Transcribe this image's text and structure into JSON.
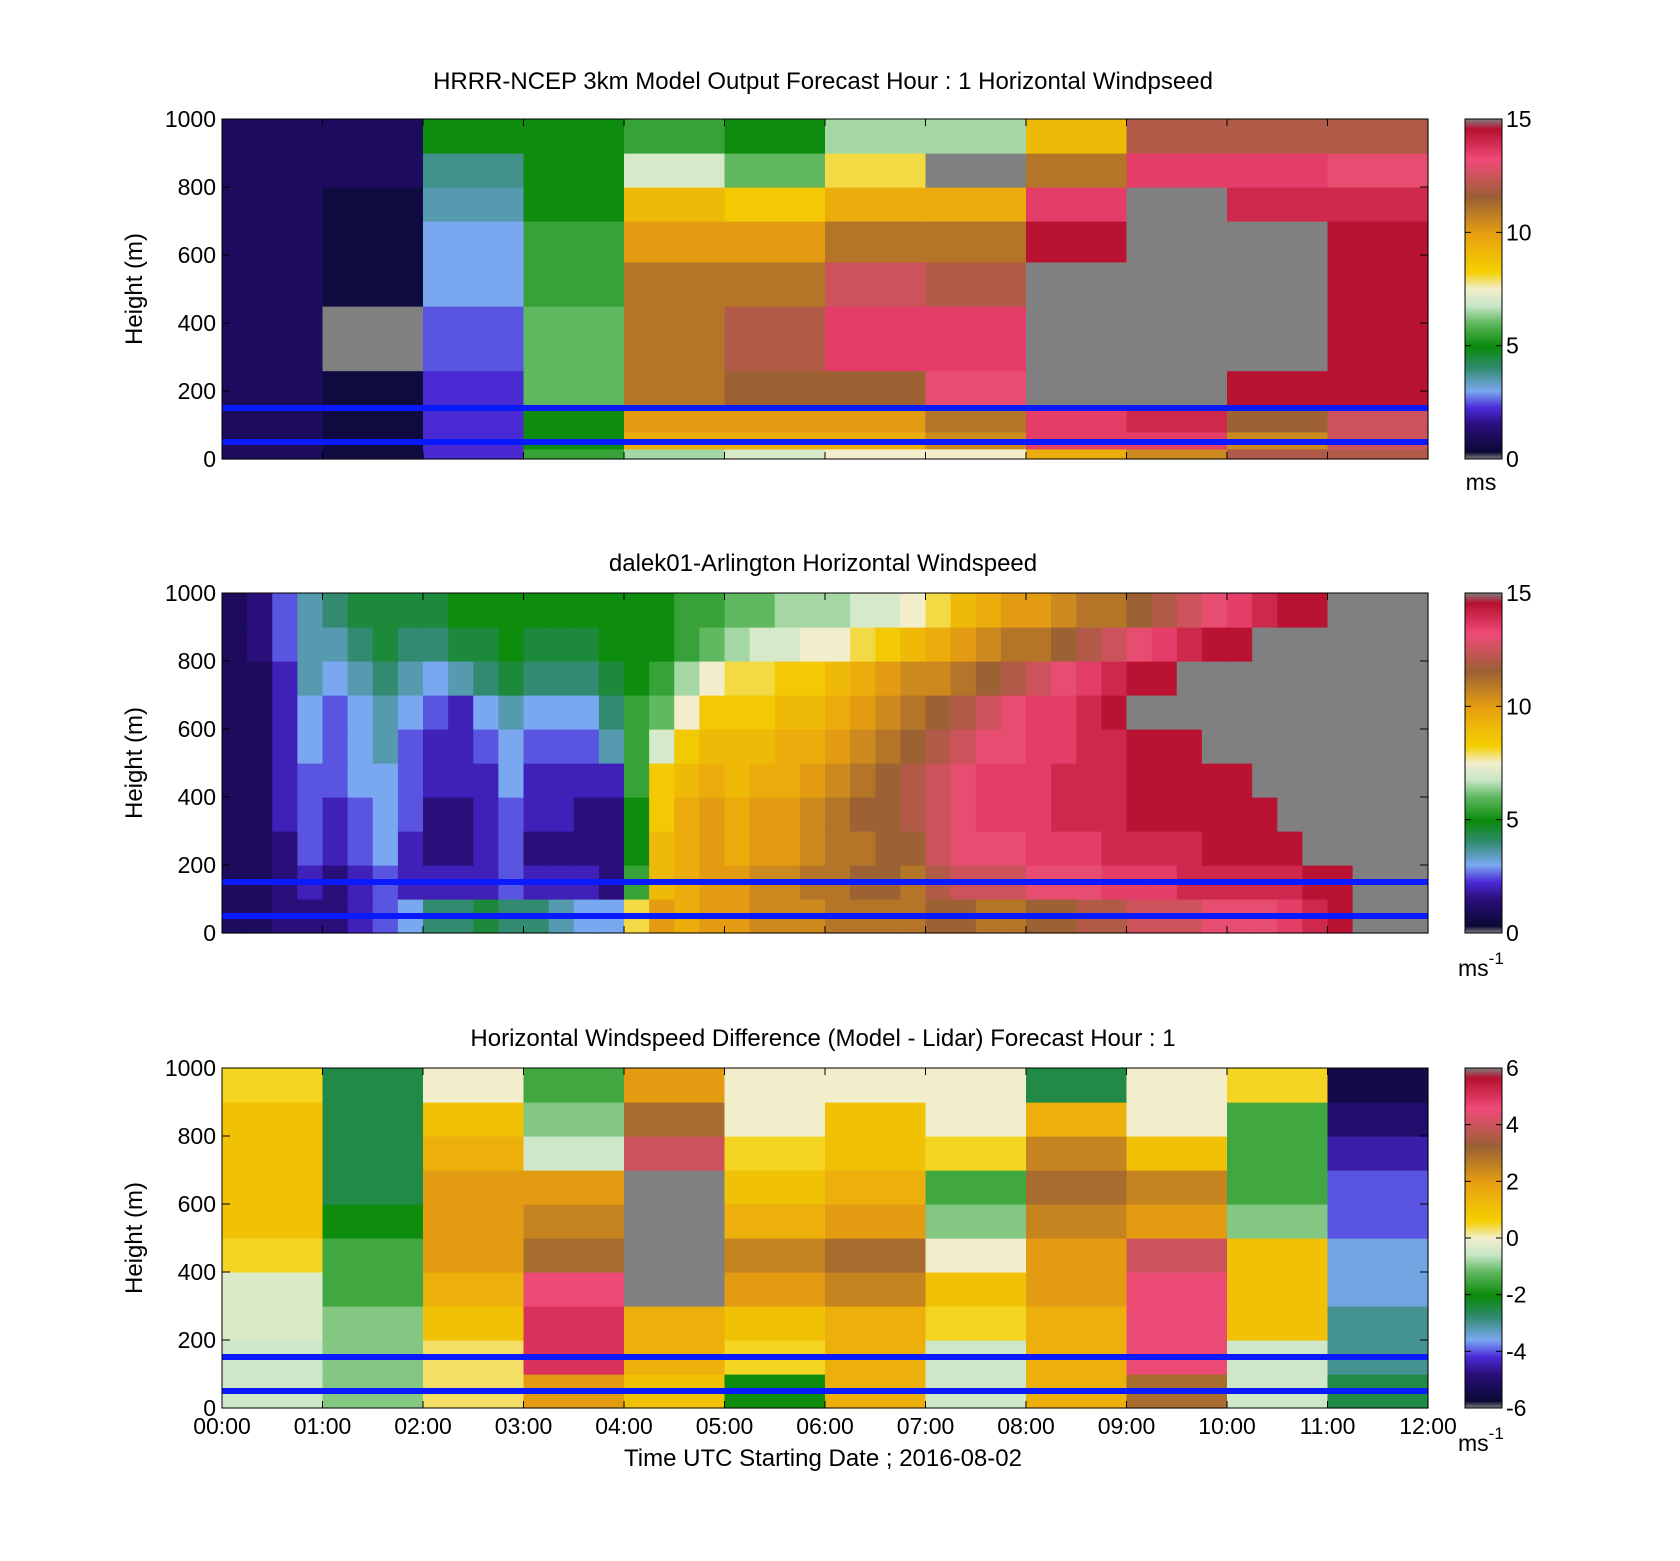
{
  "figure": {
    "xlabel": "Time UTC  Starting Date ; 2016-08-02",
    "time_ticks": [
      "00:00",
      "01:00",
      "02:00",
      "03:00",
      "04:00",
      "05:00",
      "06:00",
      "07:00",
      "08:00",
      "09:00",
      "10:00",
      "11:00",
      "12:00"
    ],
    "blue_line_heights_m": [
      50,
      150
    ]
  },
  "chart_data": [
    {
      "type": "heatmap",
      "title": "HRRR-NCEP 3km Model Output   Forecast Hour : 1 Horizontal Windpseed",
      "ylabel": "Height (m)",
      "ylim": [
        0,
        1000
      ],
      "yticks": [
        "0",
        "200",
        "400",
        "600",
        "800",
        "1000"
      ],
      "colorbar": {
        "ticks": [
          "0",
          "5",
          "10",
          "15"
        ],
        "range": [
          0,
          15
        ],
        "unit": "ms"
      },
      "columns": [
        "00:00",
        "01:00",
        "02:00",
        "03:00",
        "04:00",
        "05:00",
        "06:00",
        "07:00",
        "08:00",
        "09:00",
        "10:00",
        "11:00"
      ],
      "height_bands_m": [
        [
          0,
          30
        ],
        [
          30,
          80
        ],
        [
          80,
          150
        ],
        [
          150,
          260
        ],
        [
          260,
          450
        ],
        [
          450,
          580
        ],
        [
          580,
          700
        ],
        [
          700,
          800
        ],
        [
          800,
          900
        ],
        [
          900,
          1000
        ]
      ],
      "values_ms": [
        [
          1.0,
          0.5,
          2.2,
          5.5,
          6.5,
          7.0,
          7.5,
          7.5,
          9.5,
          10.5,
          12.0,
          12.0
        ],
        [
          1.0,
          0.5,
          2.2,
          5.0,
          9.5,
          9.5,
          9.5,
          10.5,
          13.5,
          13.5,
          10.5,
          12.5
        ],
        [
          1.0,
          0.5,
          2.2,
          5.0,
          10.0,
          10.0,
          10.0,
          11.0,
          13.5,
          14.0,
          11.5,
          12.5
        ],
        [
          1.0,
          0.5,
          2.2,
          6.0,
          11.0,
          11.5,
          11.5,
          13.0,
          15.0,
          15.0,
          14.5,
          14.5
        ],
        [
          1.0,
          15.0,
          2.5,
          6.0,
          11.0,
          12.0,
          13.5,
          13.5,
          15.0,
          15.0,
          15.0,
          14.5
        ],
        [
          1.0,
          0.5,
          3.0,
          5.5,
          11.0,
          11.0,
          12.5,
          12.0,
          15.0,
          15.0,
          15.0,
          14.5
        ],
        [
          1.0,
          0.5,
          3.0,
          5.5,
          10.0,
          10.0,
          11.0,
          11.0,
          14.5,
          15.0,
          15.0,
          14.5
        ],
        [
          1.0,
          0.5,
          3.5,
          5.0,
          9.0,
          8.5,
          9.5,
          9.5,
          13.5,
          15.0,
          14.0,
          14.0
        ],
        [
          1.0,
          1.0,
          3.8,
          5.0,
          7.0,
          6.0,
          8.0,
          15.0,
          11.0,
          13.5,
          13.5,
          13.0
        ],
        [
          1.0,
          1.0,
          5.0,
          5.0,
          5.5,
          5.0,
          6.5,
          6.5,
          9.0,
          12.0,
          12.0,
          12.0
        ]
      ]
    },
    {
      "type": "heatmap",
      "title": "dalek01-Arlington  Horizontal Windspeed",
      "ylabel": "Height (m)",
      "ylim": [
        0,
        1000
      ],
      "yticks": [
        "0",
        "200",
        "400",
        "600",
        "800",
        "1000"
      ],
      "colorbar": {
        "ticks": [
          "0",
          "5",
          "10",
          "15"
        ],
        "range": [
          0,
          15
        ],
        "unit": "ms",
        "unit_exp": "-1"
      },
      "profile_interval_min": 15,
      "height_bands_m": [
        [
          0,
          100
        ],
        [
          100,
          200
        ],
        [
          200,
          300
        ],
        [
          300,
          400
        ],
        [
          400,
          500
        ],
        [
          500,
          600
        ],
        [
          600,
          700
        ],
        [
          700,
          800
        ],
        [
          800,
          900
        ],
        [
          900,
          1000
        ]
      ],
      "profile_times": [
        "00:00",
        "00:15",
        "00:30",
        "00:45",
        "01:00",
        "01:15",
        "01:30",
        "01:45",
        "02:00",
        "02:15",
        "02:30",
        "02:45",
        "03:00",
        "03:15",
        "03:30",
        "03:45",
        "04:00",
        "04:15",
        "04:30",
        "04:45",
        "05:00",
        "05:15",
        "05:30",
        "05:45",
        "06:00",
        "06:15",
        "06:30",
        "06:45",
        "07:00",
        "07:15",
        "07:30",
        "07:45",
        "08:00",
        "08:15",
        "08:30",
        "08:45",
        "09:00",
        "09:15",
        "09:30",
        "09:45",
        "10:00",
        "10:15",
        "10:30",
        "10:45",
        "11:00",
        "11:15",
        "11:30",
        "11:45"
      ],
      "values_ms": [
        [
          1.0,
          1.0,
          1.5,
          1.5,
          1.5,
          2.0,
          2.5,
          3.0,
          4.0,
          4.0,
          4.5,
          4.0,
          4.0,
          3.5,
          3.0,
          3.0,
          8.0,
          10.0,
          9.5,
          10.0,
          10.0,
          10.5,
          10.5,
          10.5,
          11.0,
          11.0,
          11.0,
          11.0,
          11.5,
          11.5,
          11.0,
          11.0,
          11.5,
          11.5,
          12.0,
          12.0,
          12.5,
          12.5,
          12.5,
          13.0,
          13.0,
          13.0,
          13.5,
          14.0,
          14.5,
          15.0,
          15.0,
          15.0
        ],
        [
          1.0,
          1.0,
          1.5,
          2.0,
          1.5,
          2.0,
          2.5,
          2.0,
          2.0,
          2.0,
          2.0,
          2.5,
          2.0,
          2.0,
          2.0,
          1.5,
          5.5,
          9.0,
          9.5,
          10.0,
          10.0,
          10.5,
          10.5,
          11.0,
          11.0,
          11.5,
          11.5,
          11.0,
          12.0,
          12.5,
          12.5,
          12.5,
          13.0,
          13.0,
          13.0,
          13.5,
          13.5,
          13.5,
          14.0,
          14.0,
          14.0,
          14.0,
          14.0,
          14.5,
          14.5,
          15.0,
          15.0,
          15.0
        ],
        [
          1.0,
          1.0,
          1.5,
          2.5,
          2.0,
          2.5,
          3.0,
          2.0,
          1.5,
          1.5,
          2.0,
          2.5,
          1.5,
          1.5,
          1.5,
          1.5,
          5.0,
          9.0,
          9.5,
          10.0,
          9.5,
          10.0,
          10.0,
          10.5,
          11.0,
          11.0,
          11.5,
          11.5,
          12.5,
          13.0,
          13.0,
          13.0,
          13.5,
          13.5,
          13.5,
          14.0,
          14.0,
          14.0,
          14.0,
          14.5,
          14.5,
          14.5,
          14.5,
          15.0,
          15.0,
          15.0,
          15.0,
          15.0
        ],
        [
          1.0,
          1.0,
          2.0,
          2.5,
          2.0,
          2.5,
          3.0,
          2.5,
          1.5,
          1.5,
          2.0,
          2.5,
          2.0,
          2.0,
          1.5,
          1.5,
          5.0,
          8.5,
          9.5,
          10.0,
          9.5,
          10.0,
          10.0,
          10.5,
          11.0,
          11.5,
          11.5,
          12.0,
          12.5,
          13.0,
          13.5,
          13.5,
          13.5,
          14.0,
          14.0,
          14.0,
          14.5,
          14.5,
          14.5,
          14.5,
          14.5,
          14.5,
          15.0,
          15.0,
          15.0,
          15.0,
          15.0,
          15.0
        ],
        [
          1.0,
          1.0,
          2.0,
          2.5,
          2.5,
          3.0,
          3.0,
          2.5,
          2.0,
          2.0,
          2.0,
          3.0,
          2.0,
          2.0,
          2.0,
          2.0,
          5.5,
          8.5,
          9.0,
          9.5,
          9.0,
          9.5,
          9.5,
          10.0,
          10.5,
          11.0,
          11.5,
          12.0,
          12.5,
          13.0,
          13.5,
          13.5,
          13.5,
          14.0,
          14.0,
          14.0,
          14.5,
          14.5,
          14.5,
          14.5,
          14.5,
          15.0,
          15.0,
          15.0,
          15.0,
          15.0,
          15.0,
          15.0
        ],
        [
          1.0,
          1.0,
          2.0,
          3.0,
          2.5,
          3.0,
          3.5,
          2.5,
          2.0,
          2.0,
          2.5,
          3.0,
          2.5,
          2.5,
          2.5,
          3.5,
          5.5,
          7.0,
          8.5,
          9.0,
          9.0,
          9.0,
          9.5,
          9.5,
          10.0,
          10.5,
          11.0,
          11.5,
          12.0,
          12.5,
          13.0,
          13.0,
          13.5,
          13.5,
          14.0,
          14.0,
          14.5,
          14.5,
          14.5,
          15.0,
          15.0,
          15.0,
          15.0,
          15.0,
          15.0,
          15.0,
          15.0,
          15.0
        ],
        [
          1.0,
          1.0,
          2.0,
          3.0,
          2.5,
          3.0,
          3.5,
          3.0,
          2.5,
          2.0,
          3.0,
          3.5,
          3.0,
          3.0,
          3.0,
          4.0,
          5.5,
          6.0,
          7.5,
          8.5,
          8.5,
          8.5,
          9.0,
          9.0,
          9.5,
          10.0,
          10.5,
          11.0,
          11.5,
          12.0,
          12.5,
          13.0,
          13.5,
          13.5,
          14.0,
          14.5,
          15.0,
          15.0,
          15.0,
          15.0,
          15.0,
          15.0,
          15.0,
          15.0,
          15.0,
          15.0,
          15.0,
          15.0
        ],
        [
          1.0,
          1.0,
          2.0,
          3.5,
          3.0,
          3.5,
          4.0,
          3.5,
          3.0,
          3.5,
          4.0,
          4.5,
          4.0,
          4.0,
          4.0,
          4.5,
          5.0,
          5.5,
          6.5,
          7.5,
          8.0,
          8.0,
          8.5,
          8.5,
          9.0,
          9.5,
          10.0,
          10.5,
          10.5,
          11.0,
          11.5,
          12.0,
          12.5,
          13.0,
          13.5,
          14.0,
          14.5,
          14.5,
          15.0,
          15.0,
          15.0,
          15.0,
          15.0,
          15.0,
          15.0,
          15.0,
          15.0,
          15.0
        ],
        [
          1.0,
          1.5,
          2.5,
          3.5,
          3.5,
          4.0,
          4.5,
          4.0,
          4.0,
          4.5,
          4.5,
          5.0,
          4.5,
          4.5,
          4.5,
          5.0,
          5.0,
          5.0,
          5.5,
          6.0,
          6.5,
          7.0,
          7.0,
          7.5,
          7.5,
          8.0,
          8.5,
          9.0,
          9.5,
          10.0,
          10.5,
          11.0,
          11.0,
          11.5,
          12.0,
          12.5,
          13.0,
          13.5,
          14.0,
          14.5,
          14.5,
          15.0,
          15.0,
          15.0,
          15.0,
          15.0,
          15.0,
          15.0
        ],
        [
          1.0,
          1.5,
          2.5,
          3.5,
          4.0,
          4.5,
          4.5,
          4.5,
          4.5,
          5.0,
          5.0,
          5.0,
          5.0,
          5.0,
          5.0,
          5.0,
          5.0,
          5.0,
          5.5,
          5.5,
          6.0,
          6.0,
          6.5,
          6.5,
          6.5,
          7.0,
          7.0,
          7.5,
          8.0,
          9.0,
          9.5,
          10.0,
          10.0,
          10.5,
          11.0,
          11.0,
          11.5,
          12.0,
          12.5,
          13.0,
          13.5,
          14.0,
          14.5,
          14.5,
          15.0,
          15.0,
          15.0,
          15.0
        ]
      ]
    },
    {
      "type": "heatmap",
      "title": "Horizontal Windspeed Difference (Model - Lidar) Forecast Hour : 1",
      "ylabel": "Height (m)",
      "ylim": [
        0,
        1000
      ],
      "yticks": [
        "0",
        "200",
        "400",
        "600",
        "800",
        "1000"
      ],
      "colorbar": {
        "ticks": [
          "-6",
          "-4",
          "-2",
          "0",
          "2",
          "4",
          "6"
        ],
        "range": [
          -6,
          6
        ],
        "unit": "ms",
        "unit_exp": "-1"
      },
      "columns": [
        "00:00",
        "01:00",
        "02:00",
        "03:00",
        "04:00",
        "05:00",
        "06:00",
        "07:00",
        "08:00",
        "09:00",
        "10:00",
        "11:00"
      ],
      "height_bands_m": [
        [
          0,
          100
        ],
        [
          100,
          200
        ],
        [
          200,
          300
        ],
        [
          300,
          400
        ],
        [
          400,
          500
        ],
        [
          500,
          600
        ],
        [
          600,
          700
        ],
        [
          700,
          800
        ],
        [
          800,
          900
        ],
        [
          900,
          1000
        ]
      ],
      "values_ms": [
        [
          -0.5,
          -1.0,
          0.3,
          2.0,
          1.0,
          -2.0,
          1.5,
          -0.5,
          1.5,
          3.0,
          -0.5,
          -2.5
        ],
        [
          -0.5,
          -1.0,
          0.3,
          5.0,
          1.5,
          0.5,
          1.5,
          -0.5,
          1.5,
          4.5,
          -0.5,
          -3.0
        ],
        [
          -0.3,
          -1.0,
          1.0,
          5.0,
          1.5,
          1.0,
          1.5,
          0.5,
          1.5,
          4.5,
          1.0,
          -3.0
        ],
        [
          -0.3,
          -1.5,
          1.5,
          4.5,
          6.0,
          2.0,
          2.5,
          1.0,
          2.0,
          4.5,
          1.0,
          -3.5
        ],
        [
          0.5,
          -1.5,
          2.0,
          3.0,
          6.0,
          2.5,
          3.0,
          0.0,
          2.0,
          4.0,
          1.0,
          -3.5
        ],
        [
          1.0,
          -2.0,
          2.0,
          2.5,
          6.0,
          1.5,
          2.0,
          -1.0,
          2.5,
          2.0,
          -1.0,
          -4.0
        ],
        [
          1.0,
          -2.5,
          2.0,
          2.0,
          6.0,
          1.0,
          1.5,
          -1.5,
          3.0,
          2.5,
          -1.5,
          -4.0
        ],
        [
          1.0,
          -2.5,
          1.5,
          -0.5,
          4.0,
          0.5,
          1.0,
          0.5,
          2.5,
          1.0,
          -1.5,
          -4.5
        ],
        [
          1.0,
          -2.5,
          1.0,
          -1.0,
          3.0,
          0.0,
          1.0,
          0.0,
          1.5,
          0.0,
          -1.5,
          -5.0
        ],
        [
          0.5,
          -2.5,
          0.0,
          -1.5,
          2.0,
          0.0,
          0.0,
          0.0,
          -2.5,
          0.0,
          0.5,
          -5.5
        ]
      ]
    }
  ]
}
